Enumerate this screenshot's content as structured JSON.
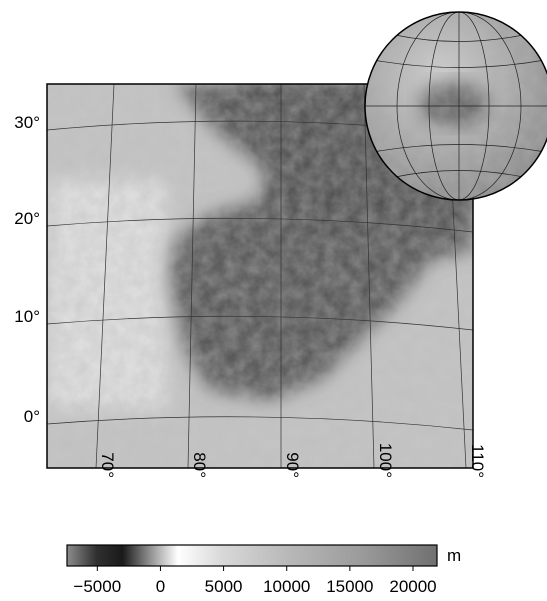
{
  "map": {
    "lat_labels": [
      "30°",
      "20°",
      "10°",
      "0°"
    ],
    "lon_labels": [
      "70°",
      "80°",
      "90°",
      "100°",
      "110°"
    ]
  },
  "colorbar": {
    "range": [
      -7400,
      21900
    ],
    "ticks": [
      -5000,
      0,
      5000,
      10000,
      15000,
      20000
    ],
    "unit": "m"
  }
}
